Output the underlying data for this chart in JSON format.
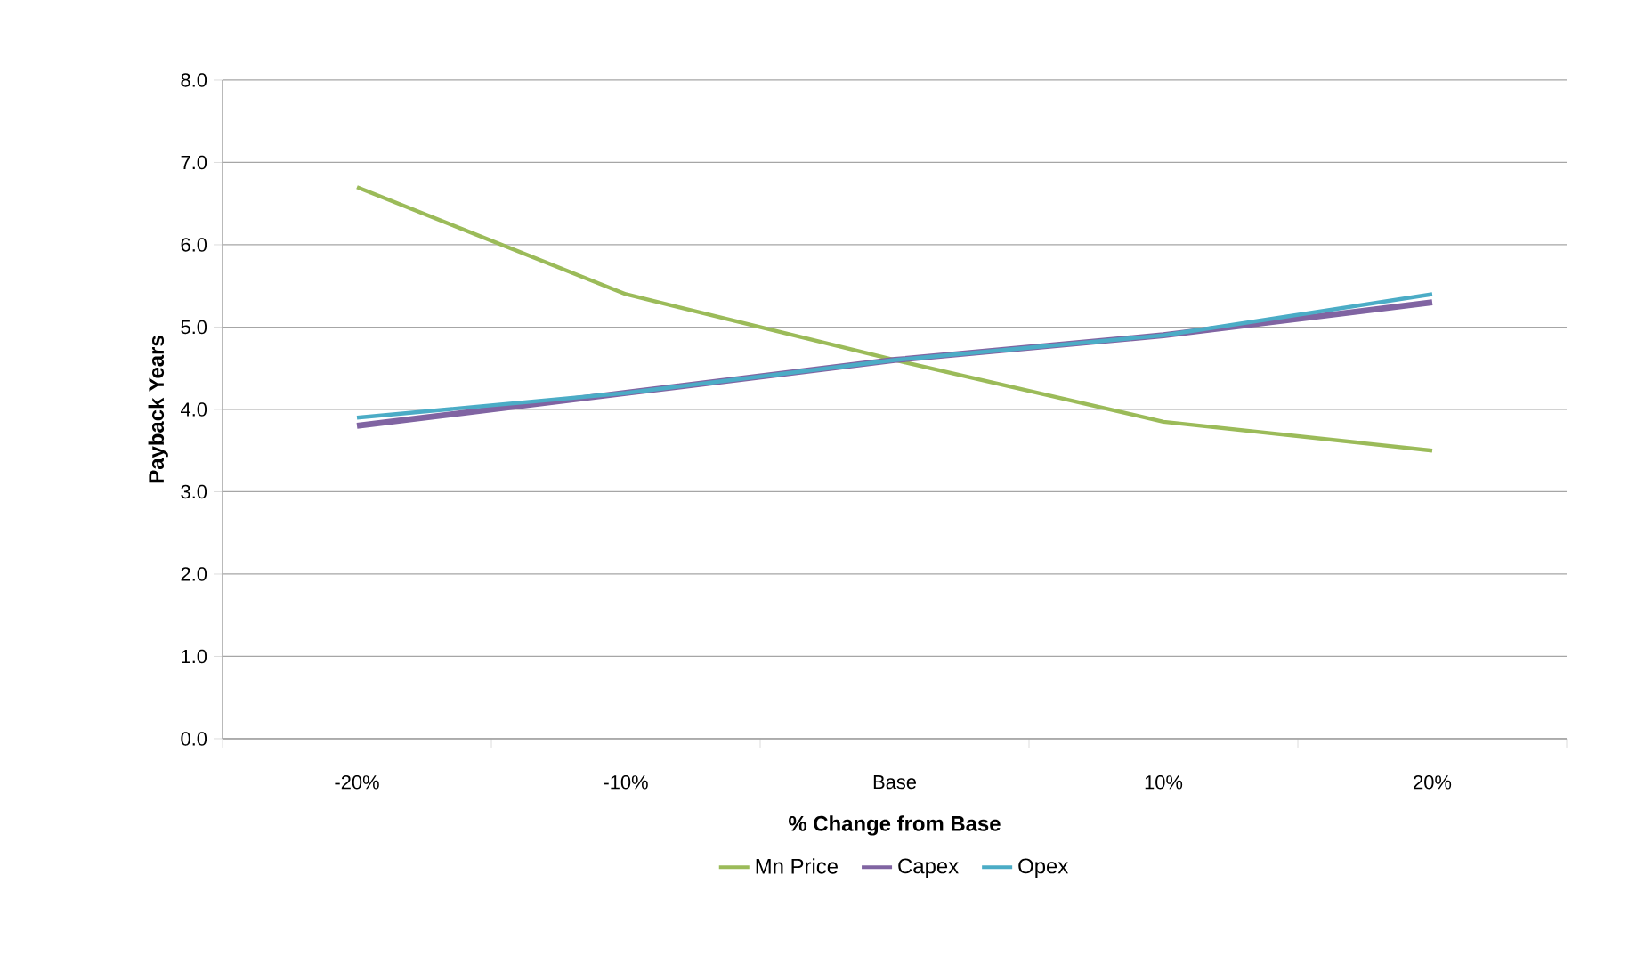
{
  "chart_data": {
    "type": "line",
    "xlabel": "% Change from Base",
    "ylabel": "Payback Years",
    "categories": [
      "-20%",
      "-10%",
      "Base",
      "10%",
      "20%"
    ],
    "series": [
      {
        "name": "Mn Price",
        "color": "#9bbb59",
        "values": [
          6.7,
          5.4,
          4.6,
          3.85,
          3.5
        ]
      },
      {
        "name": "Capex",
        "color": "#8064a2",
        "values": [
          3.8,
          4.2,
          4.6,
          4.9,
          5.3
        ]
      },
      {
        "name": "Opex",
        "color": "#4bacc6",
        "values": [
          3.9,
          4.2,
          4.6,
          4.9,
          5.4
        ]
      }
    ],
    "ylim": [
      0,
      8
    ],
    "yticks": [
      {
        "value": 0,
        "label": "0.0"
      },
      {
        "value": 1,
        "label": "1.0"
      },
      {
        "value": 2,
        "label": "2.0"
      },
      {
        "value": 3,
        "label": "3.0"
      },
      {
        "value": 4,
        "label": "4.0"
      },
      {
        "value": 5,
        "label": "5.0"
      },
      {
        "value": 6,
        "label": "6.0"
      },
      {
        "value": 7,
        "label": "7.0"
      },
      {
        "value": 8,
        "label": "8.0"
      }
    ],
    "grid": "y",
    "legend": "bottom",
    "marker": "none",
    "line_style": "solid"
  }
}
